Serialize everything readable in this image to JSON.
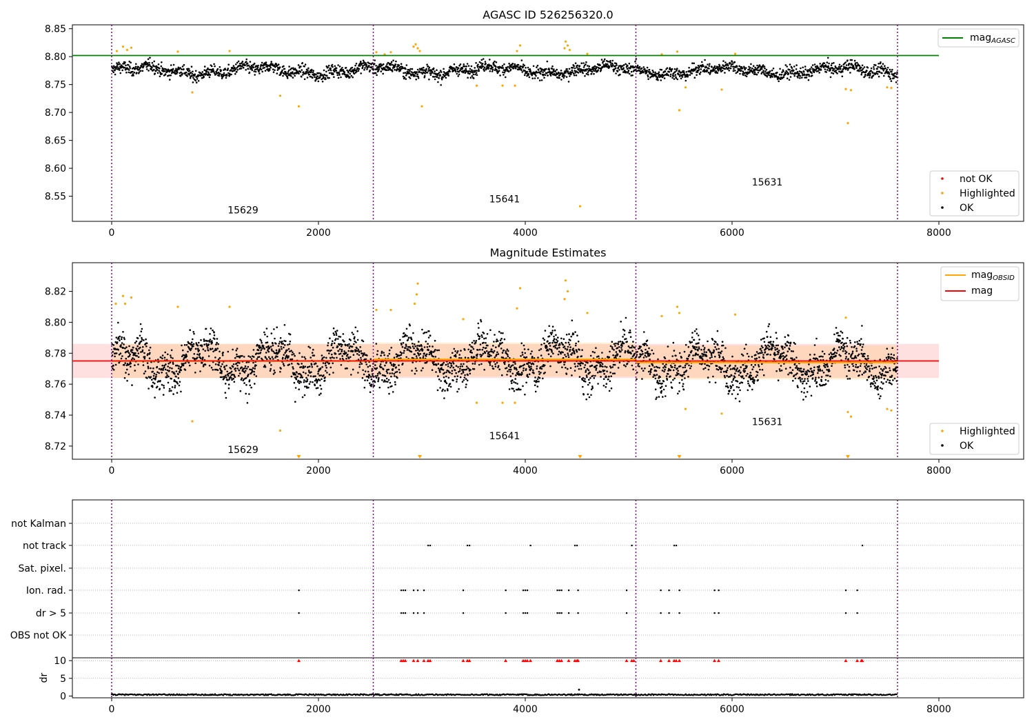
{
  "chart_data": [
    {
      "type": "scatter",
      "title": "AGASC ID 526256320.0",
      "xlim": [
        -380,
        8820
      ],
      "ylim": [
        8.505,
        8.857
      ],
      "yticks": [
        8.55,
        8.6,
        8.65,
        8.7,
        8.75,
        8.8,
        8.85
      ],
      "ytick_labels": [
        "8.55",
        "8.60",
        "8.65",
        "8.70",
        "8.75",
        "8.80",
        "8.85"
      ],
      "xticks": [
        0,
        2000,
        4000,
        6000,
        8000
      ],
      "xtick_labels": [
        "0",
        "2000",
        "4000",
        "6000",
        "8000"
      ],
      "obs_boundaries": [
        0,
        2530,
        5070,
        7600
      ],
      "obs_labels": [
        {
          "text": "15629",
          "x": 1270,
          "y": 8.519
        },
        {
          "text": "15641",
          "x": 3800,
          "y": 8.539
        },
        {
          "text": "15631",
          "x": 6340,
          "y": 8.569
        }
      ],
      "lines": [
        {
          "name": "mag_AGASC",
          "color": "#008000",
          "y": 8.802,
          "x_range": [
            -380,
            8000
          ]
        }
      ],
      "ok_series_segments": [
        {
          "x0": 0,
          "x1": 2530,
          "mean": 8.775
        },
        {
          "x0": 2530,
          "x1": 5070,
          "mean": 8.776
        },
        {
          "x0": 5070,
          "x1": 7600,
          "mean": 8.775
        }
      ],
      "highlighted_points": [
        [
          50,
          8.81
        ],
        [
          110,
          8.818
        ],
        [
          150,
          8.812
        ],
        [
          190,
          8.816
        ],
        [
          640,
          8.809
        ],
        [
          780,
          8.736
        ],
        [
          1140,
          8.81
        ],
        [
          1630,
          8.73
        ],
        [
          1810,
          8.711
        ],
        [
          2560,
          8.808
        ],
        [
          2640,
          8.804
        ],
        [
          2700,
          8.808
        ],
        [
          2920,
          8.818
        ],
        [
          2940,
          8.822
        ],
        [
          2960,
          8.815
        ],
        [
          2980,
          8.81
        ],
        [
          3000,
          8.711
        ],
        [
          3530,
          8.748
        ],
        [
          3780,
          8.748
        ],
        [
          3900,
          8.748
        ],
        [
          3920,
          8.81
        ],
        [
          3950,
          8.82
        ],
        [
          4380,
          8.815
        ],
        [
          4390,
          8.827
        ],
        [
          4410,
          8.82
        ],
        [
          4430,
          8.812
        ],
        [
          4600,
          8.805
        ],
        [
          4530,
          8.532
        ],
        [
          5320,
          8.804
        ],
        [
          5470,
          8.809
        ],
        [
          5490,
          8.704
        ],
        [
          5550,
          8.745
        ],
        [
          5900,
          8.741
        ],
        [
          6030,
          8.805
        ],
        [
          7100,
          8.742
        ],
        [
          7120,
          8.681
        ],
        [
          7150,
          8.74
        ],
        [
          7500,
          8.745
        ],
        [
          7540,
          8.744
        ]
      ],
      "legend_top": {
        "placement": "top-right",
        "entries": [
          {
            "label": "mag",
            "subscript": "AGASC",
            "color": "#008000"
          }
        ]
      },
      "legend_bottom": {
        "placement": "lower-right",
        "entries": [
          {
            "label": "not OK",
            "color": "#ff0000"
          },
          {
            "label": "Highlighted",
            "color": "#ffa500"
          },
          {
            "label": "OK",
            "color": "#000000"
          }
        ]
      }
    },
    {
      "type": "scatter",
      "title": "Magnitude Estimates",
      "xlim": [
        -380,
        8820
      ],
      "ylim": [
        8.7115,
        8.8385
      ],
      "yticks": [
        8.72,
        8.74,
        8.76,
        8.78,
        8.8,
        8.82
      ],
      "ytick_labels": [
        "8.72",
        "8.74",
        "8.76",
        "8.78",
        "8.80",
        "8.82"
      ],
      "xticks": [
        0,
        2000,
        4000,
        6000,
        8000
      ],
      "xtick_labels": [
        "0",
        "2000",
        "4000",
        "6000",
        "8000"
      ],
      "obs_boundaries": [
        0,
        2530,
        5070,
        7600
      ],
      "obs_labels": [
        {
          "text": "15629",
          "x": 1270,
          "y": 8.7155
        },
        {
          "text": "15641",
          "x": 3800,
          "y": 8.7245
        },
        {
          "text": "15631",
          "x": 6340,
          "y": 8.7335
        }
      ],
      "mag": {
        "value": 8.775,
        "band": [
          8.764,
          8.786
        ],
        "x_range": [
          -380,
          8000
        ],
        "color": "#ff0000"
      },
      "mag_obsid_segments": [
        {
          "x0": 0,
          "x1": 2530,
          "value": 8.775,
          "band": [
            8.764,
            8.786
          ]
        },
        {
          "x0": 2530,
          "x1": 5070,
          "value": 8.776,
          "band": [
            8.765,
            8.787
          ]
        },
        {
          "x0": 5070,
          "x1": 7600,
          "value": 8.774,
          "band": [
            8.763,
            8.785
          ]
        }
      ],
      "highlighted_points": [
        [
          40,
          8.812
        ],
        [
          110,
          8.817
        ],
        [
          130,
          8.812
        ],
        [
          190,
          8.816
        ],
        [
          640,
          8.81
        ],
        [
          780,
          8.736
        ],
        [
          1140,
          8.81
        ],
        [
          1630,
          8.73
        ],
        [
          2560,
          8.808
        ],
        [
          2700,
          8.808
        ],
        [
          2930,
          8.812
        ],
        [
          2950,
          8.818
        ],
        [
          2960,
          8.825
        ],
        [
          3400,
          8.802
        ],
        [
          3530,
          8.748
        ],
        [
          3780,
          8.748
        ],
        [
          3900,
          8.748
        ],
        [
          3920,
          8.809
        ],
        [
          3950,
          8.822
        ],
        [
          4380,
          8.815
        ],
        [
          4390,
          8.827
        ],
        [
          4410,
          8.82
        ],
        [
          4600,
          8.806
        ],
        [
          5320,
          8.804
        ],
        [
          5470,
          8.81
        ],
        [
          5490,
          8.806
        ],
        [
          5550,
          8.744
        ],
        [
          5900,
          8.741
        ],
        [
          6030,
          8.805
        ],
        [
          7100,
          8.803
        ],
        [
          7120,
          8.742
        ],
        [
          7150,
          8.739
        ],
        [
          7500,
          8.744
        ],
        [
          7540,
          8.743
        ]
      ],
      "offscale_markers": [
        1810,
        2980,
        4530,
        5490,
        7120
      ],
      "legend_top": {
        "placement": "top-right",
        "entries": [
          {
            "label": "mag",
            "subscript": "OBSID",
            "color": "#ffa500"
          },
          {
            "label": "mag",
            "subscript": "",
            "color": "#ff0000"
          }
        ]
      },
      "legend_bottom": {
        "placement": "lower-right",
        "entries": [
          {
            "label": "Highlighted",
            "color": "#ffa500"
          },
          {
            "label": "OK",
            "color": "#000000"
          }
        ]
      }
    },
    {
      "type": "scatter",
      "title": "",
      "xlim": [
        -380,
        8820
      ],
      "xticks": [
        0,
        2000,
        4000,
        6000,
        8000
      ],
      "xtick_labels": [
        "0",
        "2000",
        "4000",
        "6000",
        "8000"
      ],
      "obs_boundaries": [
        0,
        2530,
        5070,
        7600
      ],
      "flag_categories": [
        "not Kalman",
        "not track",
        "Sat. pixel.",
        "Ion. rad.",
        "dr > 5",
        "OBS not OK"
      ],
      "flags": {
        "not track": [
          3060,
          3080,
          3440,
          3460,
          4050,
          4480,
          4500,
          5030,
          5440,
          5460,
          7260
        ],
        "Ion. rad.": [
          1810,
          2800,
          2820,
          2840,
          2920,
          2960,
          3020,
          3400,
          3810,
          3980,
          4000,
          4020,
          4310,
          4330,
          4350,
          4420,
          4510,
          4980,
          5310,
          5390,
          5490,
          5830,
          5870,
          7100,
          7210
        ],
        "dr > 5": [
          1810,
          2800,
          2820,
          2840,
          2920,
          2960,
          3020,
          3400,
          3810,
          3980,
          4000,
          4020,
          4310,
          4330,
          4350,
          4420,
          4510,
          4980,
          5310,
          5390,
          5490,
          5830,
          5870,
          7100,
          7210
        ]
      },
      "dr_panel": {
        "ylabel": "dr",
        "ylim": [
          -0.5,
          10.8
        ],
        "yticks": [
          0,
          5,
          10
        ],
        "ytick_labels": [
          "0",
          "5",
          "10"
        ],
        "capped_points": [
          1810,
          2800,
          2820,
          2840,
          2920,
          2960,
          3020,
          3060,
          3080,
          3400,
          3440,
          3460,
          3810,
          3980,
          4000,
          4020,
          4050,
          4310,
          4330,
          4350,
          4420,
          4480,
          4500,
          4510,
          4980,
          5030,
          5050,
          5310,
          5390,
          5440,
          5460,
          5490,
          5830,
          5870,
          7100,
          7210,
          7250,
          7260
        ],
        "outlier": [
          4520,
          1.8
        ]
      }
    }
  ]
}
